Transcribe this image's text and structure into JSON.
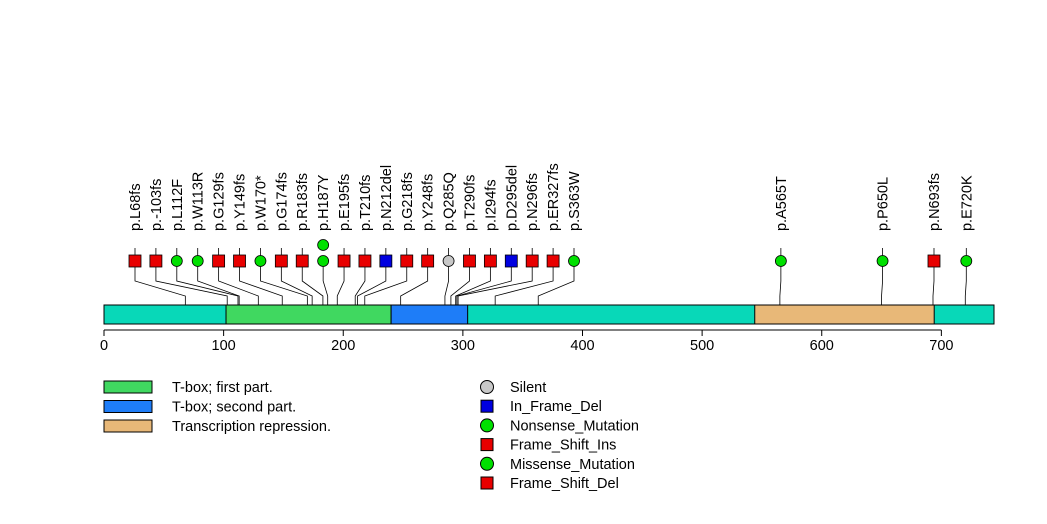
{
  "chart_data": {
    "type": "lollipop",
    "title": "",
    "xlabel": "",
    "ylabel": "",
    "protein_length": 744,
    "xlim": [
      0,
      744
    ],
    "x_ticks": [
      0,
      100,
      200,
      300,
      400,
      500,
      600,
      700
    ],
    "x_tick_labels": [
      "0",
      "100",
      "200",
      "300",
      "400",
      "500",
      "600",
      "700"
    ],
    "backbone_color": "#08d8b8",
    "domains": [
      {
        "name": "T-box; first part.",
        "start": 102,
        "end": 240,
        "color": "#40d860"
      },
      {
        "name": "T-box; second part.",
        "start": 240,
        "end": 304,
        "color": "#1e7df8"
      },
      {
        "name": "Transcription repression.",
        "start": 544,
        "end": 694,
        "color": "#e8b878"
      }
    ],
    "mutations": [
      {
        "label": "p.L68fs",
        "pos": 68,
        "type": "Frame_Shift_Del",
        "count": 1
      },
      {
        "label": "p.-103fs",
        "pos": 103,
        "type": "Frame_Shift_Del",
        "count": 1
      },
      {
        "label": "p.L112F",
        "pos": 112,
        "type": "Missense_Mutation",
        "count": 1
      },
      {
        "label": "p.W113R",
        "pos": 113,
        "type": "Missense_Mutation",
        "count": 1
      },
      {
        "label": "p.G129fs",
        "pos": 129,
        "type": "Frame_Shift_Del",
        "count": 1
      },
      {
        "label": "p.Y149fs",
        "pos": 149,
        "type": "Frame_Shift_Del",
        "count": 1
      },
      {
        "label": "p.W170*",
        "pos": 170,
        "type": "Nonsense_Mutation",
        "count": 1
      },
      {
        "label": "p.G174fs",
        "pos": 174,
        "type": "Frame_Shift_Del",
        "count": 1
      },
      {
        "label": "p.R183fs",
        "pos": 183,
        "type": "Frame_Shift_Del",
        "count": 1
      },
      {
        "label": "p.H187Y",
        "pos": 187,
        "type": "Missense_Mutation",
        "count": 2
      },
      {
        "label": "p.E195fs",
        "pos": 195,
        "type": "Frame_Shift_Del",
        "count": 1
      },
      {
        "label": "p.T210fs",
        "pos": 210,
        "type": "Frame_Shift_Del",
        "count": 1
      },
      {
        "label": "p.N212del",
        "pos": 212,
        "type": "In_Frame_Del",
        "count": 1
      },
      {
        "label": "p.G218fs",
        "pos": 218,
        "type": "Frame_Shift_Del",
        "count": 1
      },
      {
        "label": "p.Y248fs",
        "pos": 248,
        "type": "Frame_Shift_Del",
        "count": 1
      },
      {
        "label": "p.Q285Q",
        "pos": 285,
        "type": "Silent",
        "count": 1
      },
      {
        "label": "p.T290fs",
        "pos": 290,
        "type": "Frame_Shift_Del",
        "count": 1
      },
      {
        "label": "p.I294fs",
        "pos": 294,
        "type": "Frame_Shift_Del",
        "count": 1
      },
      {
        "label": "p.D295del",
        "pos": 295,
        "type": "In_Frame_Del",
        "count": 1
      },
      {
        "label": "p.N296fs",
        "pos": 296,
        "type": "Frame_Shift_Del",
        "count": 1
      },
      {
        "label": "p.ER327fs",
        "pos": 327,
        "type": "Frame_Shift_Del",
        "count": 1
      },
      {
        "label": "p.S363W",
        "pos": 363,
        "type": "Missense_Mutation",
        "count": 1
      },
      {
        "label": "p.A565T",
        "pos": 565,
        "type": "Missense_Mutation",
        "count": 1
      },
      {
        "label": "p.P650L",
        "pos": 650,
        "type": "Missense_Mutation",
        "count": 1
      },
      {
        "label": "p.N693fs",
        "pos": 693,
        "type": "Frame_Shift_Del",
        "count": 1
      },
      {
        "label": "p.E720K",
        "pos": 720,
        "type": "Missense_Mutation",
        "count": 1
      }
    ],
    "mutation_types": [
      {
        "name": "Silent",
        "shape": "circle",
        "color": "#c8c8c8"
      },
      {
        "name": "In_Frame_Del",
        "shape": "square",
        "color": "#0000e0"
      },
      {
        "name": "Nonsense_Mutation",
        "shape": "circle",
        "color": "#00e000"
      },
      {
        "name": "Frame_Shift_Ins",
        "shape": "square",
        "color": "#e80000"
      },
      {
        "name": "Missense_Mutation",
        "shape": "circle",
        "color": "#00e000"
      },
      {
        "name": "Frame_Shift_Del",
        "shape": "square",
        "color": "#e80000"
      }
    ]
  }
}
